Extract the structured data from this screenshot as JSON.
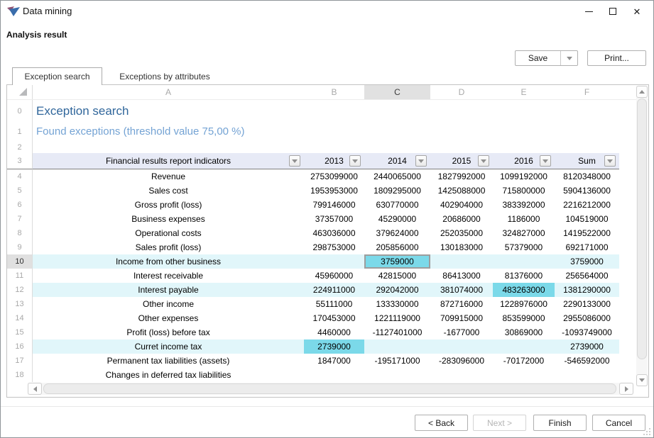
{
  "window": {
    "title": "Data mining"
  },
  "page": {
    "title": "Analysis result"
  },
  "toolbar": {
    "save_label": "Save",
    "print_label": "Print..."
  },
  "tabs": [
    {
      "label": "Exception search",
      "active": true
    },
    {
      "label": "Exceptions by attributes",
      "active": false
    }
  ],
  "sheet": {
    "column_letters": [
      "A",
      "B",
      "C",
      "D",
      "E",
      "F"
    ],
    "selected_column_letter": "C",
    "selected_row_number": "10",
    "row_numbers": {
      "title": "0",
      "subtitle": "1",
      "empty": "2",
      "filter": "3"
    },
    "title": "Exception search",
    "subtitle": "Found exceptions (threshold value 75,00 %)",
    "filter_headers": [
      "Financial results report indicators",
      "2013",
      "2014",
      "2015",
      "2016",
      "Sum"
    ],
    "data_rows": [
      {
        "num": "4",
        "label": "Revenue",
        "values": [
          "2753099000",
          "2440065000",
          "1827992000",
          "1099192000",
          "8120348000"
        ]
      },
      {
        "num": "5",
        "label": "Sales cost",
        "values": [
          "1953953000",
          "1809295000",
          "1425088000",
          "715800000",
          "5904136000"
        ]
      },
      {
        "num": "6",
        "label": "Gross profit (loss)",
        "values": [
          "799146000",
          "630770000",
          "402904000",
          "383392000",
          "2216212000"
        ]
      },
      {
        "num": "7",
        "label": "Business expenses",
        "values": [
          "37357000",
          "45290000",
          "20686000",
          "1186000",
          "104519000"
        ]
      },
      {
        "num": "8",
        "label": "Operational costs",
        "values": [
          "463036000",
          "379624000",
          "252035000",
          "324827000",
          "1419522000"
        ]
      },
      {
        "num": "9",
        "label": "Sales profit (loss)",
        "values": [
          "298753000",
          "205856000",
          "130183000",
          "57379000",
          "692171000"
        ]
      },
      {
        "num": "10",
        "label": "Income from other business",
        "values": [
          "",
          "3759000",
          "",
          "",
          "3759000"
        ],
        "row_highlight": true,
        "highlight_cells": [
          1
        ],
        "focused_cell": 1,
        "selected_row": true
      },
      {
        "num": "11",
        "label": "Interest receivable",
        "values": [
          "45960000",
          "42815000",
          "86413000",
          "81376000",
          "256564000"
        ]
      },
      {
        "num": "12",
        "label": "Interest payable",
        "values": [
          "224911000",
          "292042000",
          "381074000",
          "483263000",
          "1381290000"
        ],
        "row_highlight": true,
        "highlight_cells": [
          3
        ]
      },
      {
        "num": "13",
        "label": "Other income",
        "values": [
          "55111000",
          "133330000",
          "872716000",
          "1228976000",
          "2290133000"
        ]
      },
      {
        "num": "14",
        "label": "Other expenses",
        "values": [
          "170453000",
          "1221119000",
          "709915000",
          "853599000",
          "2955086000"
        ]
      },
      {
        "num": "15",
        "label": "Profit (loss) before tax",
        "values": [
          "4460000",
          "-1127401000",
          "-1677000",
          "30869000",
          "-1093749000"
        ]
      },
      {
        "num": "16",
        "label": "Curret income tax",
        "values": [
          "2739000",
          "",
          "",
          "",
          "2739000"
        ],
        "row_highlight": true,
        "highlight_cells": [
          0
        ]
      },
      {
        "num": "17",
        "label": "Permanent tax liabilities (assets)",
        "values": [
          "1847000",
          "-195171000",
          "-283096000",
          "-70172000",
          "-546592000"
        ]
      },
      {
        "num": "18",
        "label": "Changes in deferred tax liabilities",
        "values": [
          "",
          "",
          "",
          "",
          ""
        ]
      }
    ]
  },
  "footer": {
    "back_label": "< Back",
    "next_label": "Next >",
    "next_enabled": false,
    "finish_label": "Finish",
    "cancel_label": "Cancel"
  },
  "icons": {
    "app_logo": "data-mining-logo-icon",
    "filter_dropdown": "chevron-down-icon",
    "save_dropdown": "chevron-down-icon",
    "window": [
      "minimize-icon",
      "maximize-icon",
      "close-icon"
    ],
    "scrollbar": [
      "chevron-up-icon",
      "chevron-down-icon",
      "chevron-left-icon",
      "chevron-right-icon"
    ],
    "resize_grip": "resize-grip-icon"
  },
  "colors": {
    "sheet_title": "#30669B",
    "subtitle": "#74A3D4",
    "hdr_bg": "#E7EAF6",
    "row_hl": "#E1F6FA",
    "cell_hl": "#7BD9E9",
    "logo_blue": "#3A6DAB",
    "logo_purple": "#8E5070"
  }
}
